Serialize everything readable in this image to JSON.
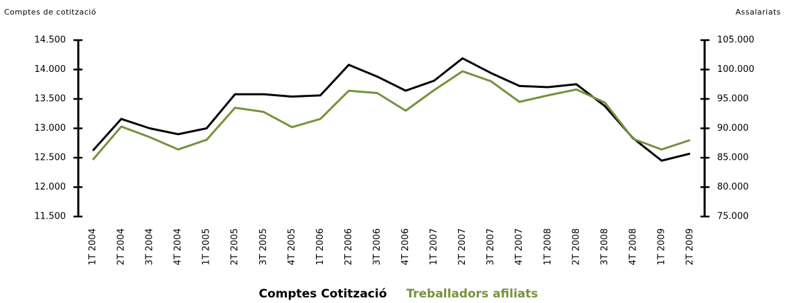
{
  "chart_data": {
    "type": "line",
    "ylabel": "Comptes de cotització",
    "y2label": "Assalariats",
    "categories": [
      "1T 2004",
      "2T 2004",
      "3T 2004",
      "4T 2004",
      "1T 2005",
      "2T 2005",
      "3T 2005",
      "4T 2005",
      "1T 2006",
      "2T 2006",
      "3T 2006",
      "4T 2006",
      "1T 2007",
      "2T 2007",
      "3T 2007",
      "4T 2007",
      "1T 2008",
      "2T 2008",
      "3T 2008",
      "4T 2008",
      "1T 2009",
      "2T 2009"
    ],
    "series": [
      {
        "name": "Comptes Cotització",
        "color": "#000000",
        "axis": "y",
        "values": [
          12620,
          13160,
          13000,
          12900,
          13000,
          13580,
          13580,
          13540,
          13560,
          14080,
          13880,
          13640,
          13810,
          14190,
          13940,
          13720,
          13700,
          13750,
          13380,
          12830,
          12450,
          12570
        ]
      },
      {
        "name": "Treballadors afiliats",
        "color": "#76923c",
        "axis": "y2",
        "values": [
          84650,
          90300,
          88500,
          86400,
          88050,
          93500,
          92800,
          90200,
          91600,
          96400,
          96000,
          93000,
          96500,
          99700,
          98000,
          94500,
          95600,
          96600,
          94400,
          88200,
          86400,
          88000
        ]
      }
    ],
    "ylim": [
      11500,
      14500
    ],
    "yticks": [
      {
        "value": 11500,
        "label": "11.500"
      },
      {
        "value": 12000,
        "label": "12.000"
      },
      {
        "value": 12500,
        "label": "12.500"
      },
      {
        "value": 13000,
        "label": "13.000"
      },
      {
        "value": 13500,
        "label": "13.500"
      },
      {
        "value": 14000,
        "label": "14.000"
      },
      {
        "value": 14500,
        "label": "14.500"
      }
    ],
    "y2lim": [
      75000,
      105000
    ],
    "y2ticks": [
      {
        "value": 75000,
        "label": "75.000"
      },
      {
        "value": 80000,
        "label": "80.000"
      },
      {
        "value": 85000,
        "label": "85.000"
      },
      {
        "value": 90000,
        "label": "90.000"
      },
      {
        "value": 95000,
        "label": "95.000"
      },
      {
        "value": 100000,
        "label": "100.000"
      },
      {
        "value": 105000,
        "label": "105.000"
      }
    ],
    "legend": "bottom"
  }
}
